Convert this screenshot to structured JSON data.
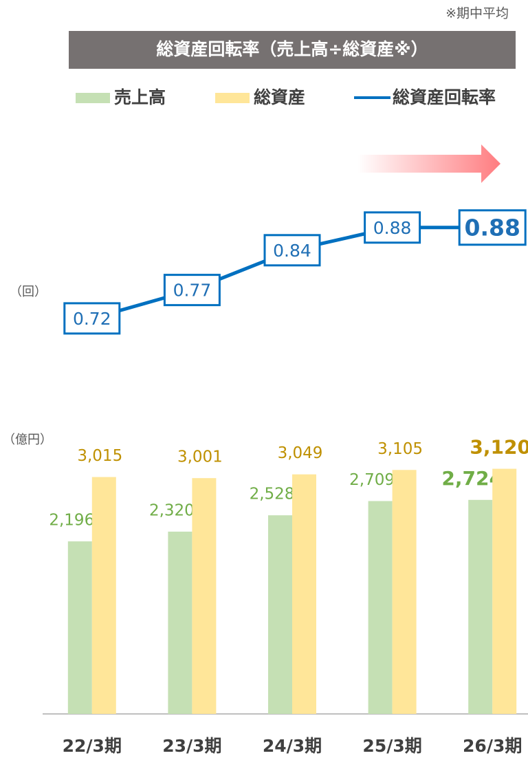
{
  "note": "※期中平均",
  "title": "総資産回転率（売上高÷総資産※）",
  "chart_data": [
    {
      "type": "line",
      "y_label": "（回）",
      "categories": [
        "22/3期",
        "23/3期",
        "24/3期",
        "25/3期",
        "26/3期"
      ],
      "ylim": [
        0.6,
        0.95
      ],
      "series": [
        {
          "name": "総資産回転率",
          "color": "#0070c0",
          "values": [
            0.72,
            0.77,
            0.84,
            0.88,
            0.88
          ]
        }
      ]
    },
    {
      "type": "bar",
      "y_label": "（億円）",
      "categories": [
        "22/3期",
        "23/3期",
        "24/3期",
        "25/3期",
        "26/3期"
      ],
      "ylim": [
        0,
        3300
      ],
      "series": [
        {
          "name": "売上高",
          "color": "#c5e0b4",
          "label_color": "#70ad47",
          "values": [
            2196,
            2320,
            2528,
            2709,
            2724
          ],
          "value_labels": [
            "2,196",
            "2,320",
            "2,528",
            "2,709",
            "2,724"
          ]
        },
        {
          "name": "総資産",
          "color": "#ffe699",
          "label_color": "#bf9000",
          "values": [
            3015,
            3001,
            3049,
            3105,
            3120
          ],
          "value_labels": [
            "3,015",
            "3,001",
            "3,049",
            "3,105",
            "3,120"
          ]
        }
      ]
    }
  ]
}
